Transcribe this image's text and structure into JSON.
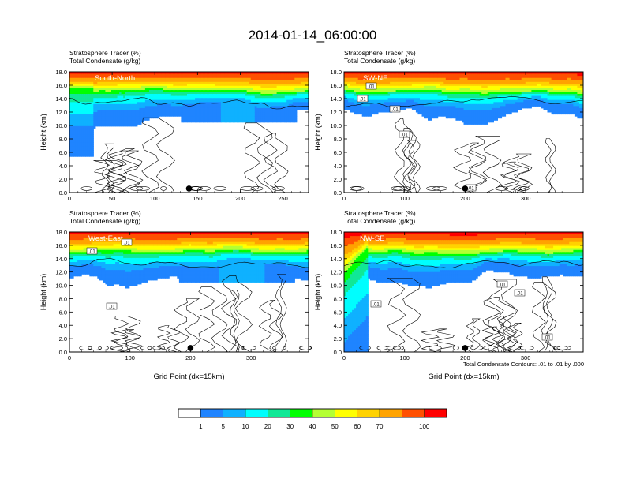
{
  "title": "2014-01-14_06:00:00",
  "colorbar": {
    "colors": [
      "#ffffff",
      "#1f84ff",
      "#0fb1ff",
      "#00fefe",
      "#10e896",
      "#00ff00",
      "#b4ff33",
      "#ffff00",
      "#ffd200",
      "#ffa300",
      "#ff5000",
      "#ff0000"
    ],
    "labels": [
      "1",
      "5",
      "10",
      "20",
      "30",
      "40",
      "50",
      "60",
      "70",
      "100"
    ]
  },
  "contour_note": "Total Condensate Contours: .01 to .01 by .000",
  "chart_data": [
    {
      "type": "heatmap",
      "name": "South-North",
      "title_lines": [
        "Stratosphere Tracer   (%)",
        "Total Condensate   (g/kg)"
      ],
      "ylabel": "Height (km)",
      "xlabel": "",
      "xlim": [
        0,
        280
      ],
      "ylim": [
        0,
        18
      ],
      "xticks": [
        "0",
        "50",
        "100",
        "150",
        "200",
        "250"
      ],
      "yticks": [
        "0.0",
        "2.0",
        "4.0",
        "6.0",
        "8.0",
        "10.0",
        "12.0",
        "14.0",
        "16.0",
        "18.0"
      ],
      "marker_x": 140,
      "contour_labels": []
    },
    {
      "type": "heatmap",
      "name": "SW-NE",
      "title_lines": [
        "Stratosphere Tracer   (%)",
        "Total Condensate   (g/kg)"
      ],
      "ylabel": "Height (km)",
      "xlabel": "",
      "xlim": [
        0,
        395
      ],
      "ylim": [
        0,
        18
      ],
      "xticks": [
        "0",
        "100",
        "200",
        "300"
      ],
      "yticks": [
        "0.0",
        "2.0",
        "4.0",
        "6.0",
        "8.0",
        "10.0",
        "12.0",
        "14.0",
        "16.0",
        "18.0"
      ],
      "marker_x": 200,
      "contour_labels": [
        ".01",
        ".01",
        ".01",
        ".01",
        ".01"
      ]
    },
    {
      "type": "heatmap",
      "name": "West-East",
      "title_lines": [
        "Stratosphere Tracer   (%)",
        "Total Condensate   (g/kg)"
      ],
      "ylabel": "Height (km)",
      "xlabel": "Grid Point (dx=15km)",
      "xlim": [
        0,
        395
      ],
      "ylim": [
        0,
        18
      ],
      "xticks": [
        "0",
        "100",
        "200",
        "300"
      ],
      "yticks": [
        "0.0",
        "2.0",
        "4.0",
        "6.0",
        "8.0",
        "10.0",
        "12.0",
        "14.0",
        "16.0",
        "18.0"
      ],
      "marker_x": 200,
      "contour_labels": [
        ".01",
        ".01",
        ".01"
      ]
    },
    {
      "type": "heatmap",
      "name": "NW-SE",
      "title_lines": [
        "Stratosphere Tracer   (%)",
        "Total Condensate   (g/kg)"
      ],
      "ylabel": "Height (km)",
      "xlabel": "Grid Point (dx=15km)",
      "xlim": [
        0,
        395
      ],
      "ylim": [
        0,
        18
      ],
      "xticks": [
        "0",
        "100",
        "200",
        "300"
      ],
      "yticks": [
        "0.0",
        "2.0",
        "4.0",
        "6.0",
        "8.0",
        "10.0",
        "12.0",
        "14.0",
        "16.0",
        "18.0"
      ],
      "marker_x": 200,
      "contour_labels": [
        ".01",
        ".01",
        ".01",
        ".01"
      ]
    }
  ]
}
